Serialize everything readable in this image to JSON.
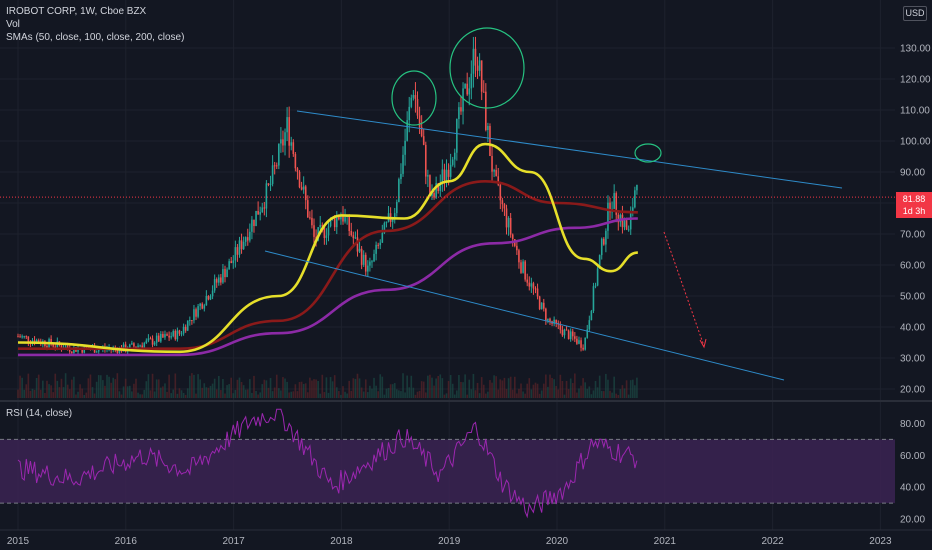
{
  "legend": {
    "symbol_line": "IROBOT CORP, 1W, Cboe BZX",
    "volume_label": "Vol",
    "sma_label": "SMAs (50, close, 100, close, 200, close)",
    "rsi_label": "RSI (14, close)"
  },
  "currency_badge": "USD",
  "price_tag": {
    "price": "81.88",
    "countdown": "1d 3h"
  },
  "price_axis_labels": [
    "130.00",
    "120.00",
    "110.00",
    "100.00",
    "90.00",
    "80.00",
    "70.00",
    "60.00",
    "50.00",
    "40.00",
    "30.00",
    "20.00"
  ],
  "rsi_axis_labels": [
    "80.00",
    "60.00",
    "40.00",
    "20.00"
  ],
  "time_axis_labels": [
    "2015",
    "2016",
    "2017",
    "2018",
    "2019",
    "2020",
    "2021",
    "2022",
    "2023"
  ],
  "colors": {
    "background": "#131722",
    "candle_up": "#26a69a",
    "candle_down": "#ef5350",
    "sma50": "#e6df2a",
    "sma100": "#8a1a1a",
    "sma200": "#8c2aa6",
    "rsi_line": "#9c27b0",
    "rsi_band": "#3b2352",
    "trendline": "#2e8bc9",
    "annotation_circle": "#26c281",
    "arrow": "#f23645"
  },
  "chart_data": {
    "type": "line",
    "series": [
      {
        "name": "IROBOT CORP, 1W, Cboe BZX",
        "x": [
          "2015-01",
          "2015-07",
          "2016-01",
          "2016-07",
          "2017-01",
          "2017-05",
          "2017-07",
          "2017-10",
          "2018-01",
          "2018-04",
          "2018-07",
          "2018-09",
          "2018-11",
          "2019-01",
          "2019-04",
          "2019-06",
          "2019-09",
          "2019-12",
          "2020-04",
          "2020-07",
          "2020-09",
          "2020-10"
        ],
        "values": [
          37,
          33,
          33,
          38,
          62,
          85,
          105,
          68,
          77,
          58,
          79,
          118,
          80,
          93,
          130,
          87,
          60,
          42,
          34,
          82,
          70,
          92
        ]
      },
      {
        "name": "SMA 50",
        "x": [
          "2015-01",
          "2016-07",
          "2017-06",
          "2018-01",
          "2018-08",
          "2019-01",
          "2019-05",
          "2019-10",
          "2020-04",
          "2020-07",
          "2020-10"
        ],
        "values": [
          35,
          32,
          50,
          76,
          75,
          87,
          99,
          90,
          62,
          58,
          64
        ]
      },
      {
        "name": "SMA 100",
        "x": [
          "2015-01",
          "2016-07",
          "2017-06",
          "2018-06",
          "2019-05",
          "2020-01",
          "2020-10"
        ],
        "values": [
          33,
          33,
          42,
          71,
          87,
          80,
          77
        ]
      },
      {
        "name": "SMA 200",
        "x": [
          "2015-01",
          "2016-07",
          "2017-06",
          "2018-06",
          "2019-06",
          "2020-03",
          "2020-10"
        ],
        "values": [
          31,
          31,
          38,
          52,
          67,
          72,
          75
        ]
      }
    ],
    "rsi": {
      "x": [
        "2015-01",
        "2015-07",
        "2016-03",
        "2016-08",
        "2017-03",
        "2017-06",
        "2017-12",
        "2018-08",
        "2018-12",
        "2019-04",
        "2019-07",
        "2019-10",
        "2020-02",
        "2020-05",
        "2020-09",
        "2020-10"
      ],
      "values": [
        52,
        45,
        60,
        50,
        82,
        88,
        40,
        72,
        48,
        78,
        42,
        25,
        40,
        68,
        60,
        58
      ],
      "upper": 70,
      "lower": 30
    },
    "ylim": [
      20,
      133
    ],
    "rsi_ylim": [
      20,
      90
    ]
  }
}
